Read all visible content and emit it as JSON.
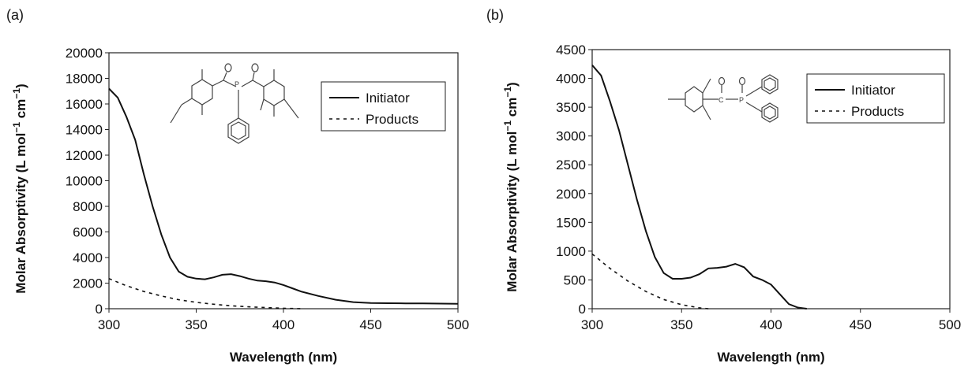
{
  "chart_data": [
    {
      "type": "line",
      "panel_label": "(a)",
      "xlabel": "Wavelength (nm)",
      "ylabel_main": "Molar Absorptivity (L mol",
      "ylabel_exp1": "−1",
      "ylabel_mid": " cm",
      "ylabel_exp2": "−1",
      "ylabel_end": ")",
      "xlim": [
        300,
        500
      ],
      "ylim": [
        0,
        20000
      ],
      "xticks": [
        300,
        350,
        400,
        450,
        500
      ],
      "yticks": [
        0,
        2000,
        4000,
        6000,
        8000,
        10000,
        12000,
        14000,
        16000,
        18000,
        20000
      ],
      "xtick_labels": [
        "300",
        "350",
        "400",
        "450",
        "500"
      ],
      "ytick_labels": [
        "0",
        "2000",
        "4000",
        "6000",
        "8000",
        "10000",
        "12000",
        "14000",
        "16000",
        "18000",
        "20000"
      ],
      "legend_position": "top-right",
      "series": [
        {
          "name": "Initiator",
          "style": "solid",
          "x": [
            300,
            305,
            310,
            315,
            320,
            325,
            330,
            335,
            340,
            345,
            350,
            355,
            360,
            365,
            370,
            375,
            380,
            385,
            390,
            395,
            400,
            405,
            410,
            420,
            430,
            440,
            450,
            460,
            470,
            480,
            490,
            500
          ],
          "y": [
            17200,
            16500,
            15000,
            13200,
            10500,
            8000,
            5800,
            4000,
            2900,
            2500,
            2350,
            2300,
            2450,
            2650,
            2700,
            2550,
            2350,
            2200,
            2150,
            2050,
            1850,
            1600,
            1350,
            1000,
            700,
            520,
            450,
            430,
            420,
            410,
            400,
            390
          ]
        },
        {
          "name": "Products",
          "style": "dashed",
          "x": [
            300,
            310,
            320,
            330,
            340,
            350,
            360,
            370,
            380,
            390,
            400,
            410
          ],
          "y": [
            2350,
            1800,
            1350,
            1000,
            700,
            500,
            350,
            230,
            150,
            90,
            40,
            0
          ]
        }
      ]
    },
    {
      "type": "line",
      "panel_label": "(b)",
      "xlabel": "Wavelength (nm)",
      "ylabel_main": "Molar Absorptivity (L mol",
      "ylabel_exp1": "−1",
      "ylabel_mid": " cm",
      "ylabel_exp2": "−1",
      "ylabel_end": ")",
      "xlim": [
        300,
        500
      ],
      "ylim": [
        0,
        4500
      ],
      "xticks": [
        300,
        350,
        400,
        450,
        500
      ],
      "yticks": [
        0,
        500,
        1000,
        1500,
        2000,
        2500,
        3000,
        3500,
        4000,
        4500
      ],
      "xtick_labels": [
        "300",
        "350",
        "400",
        "450",
        "500"
      ],
      "ytick_labels": [
        "0",
        "500",
        "1000",
        "1500",
        "2000",
        "2500",
        "3000",
        "3500",
        "4000",
        "4500"
      ],
      "legend_position": "top-right",
      "series": [
        {
          "name": "Initiator",
          "style": "solid",
          "x": [
            300,
            305,
            310,
            315,
            320,
            325,
            330,
            335,
            340,
            345,
            350,
            355,
            360,
            365,
            370,
            375,
            380,
            385,
            390,
            395,
            400,
            405,
            410,
            415,
            420
          ],
          "y": [
            4230,
            4050,
            3600,
            3100,
            2500,
            1900,
            1350,
            900,
            620,
            520,
            520,
            540,
            600,
            700,
            710,
            730,
            780,
            720,
            560,
            500,
            420,
            250,
            80,
            20,
            0
          ]
        },
        {
          "name": "Products",
          "style": "dashed",
          "x": [
            300,
            310,
            320,
            330,
            340,
            350,
            360,
            365
          ],
          "y": [
            950,
            700,
            480,
            300,
            160,
            70,
            15,
            0
          ]
        }
      ]
    }
  ]
}
